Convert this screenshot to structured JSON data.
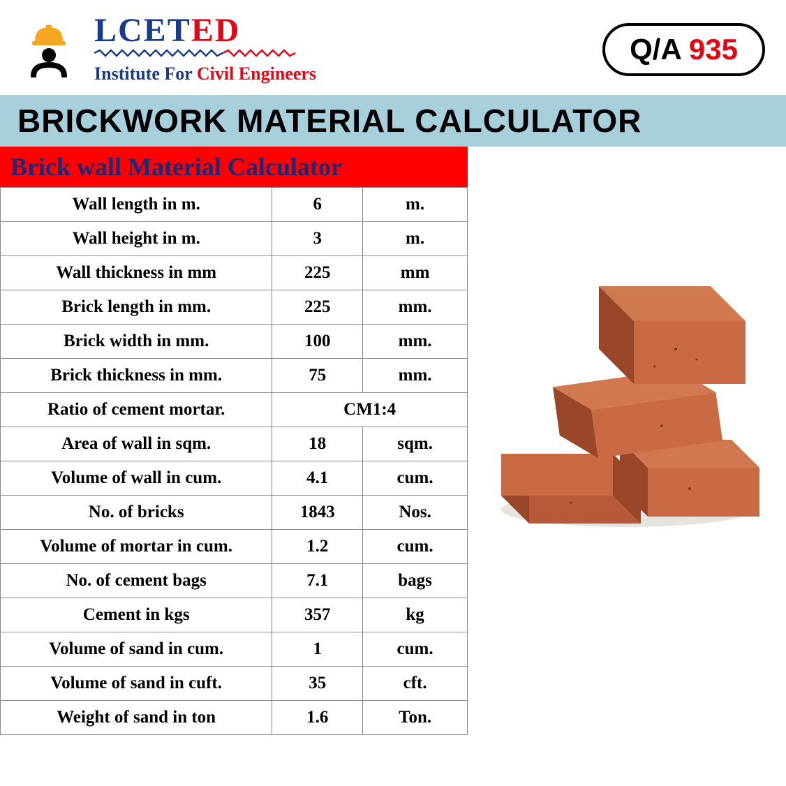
{
  "header": {
    "logo_part1": "LCET",
    "logo_part2": "ED",
    "subtitle_part1": "Institute For ",
    "subtitle_part2": "Civil Engineers",
    "qa_label": "Q/A ",
    "qa_number": "935",
    "underline_colors": {
      "blue": "#1a3a8a",
      "red": "#e30613"
    }
  },
  "main_title": "BRICKWORK MATERIAL CALCULATOR",
  "table": {
    "title": "Brick wall Material Calculator",
    "title_bg": "#ff0000",
    "title_color": "#1a2a7a",
    "border_color": "#8a8a8a",
    "cell_bg": "#ffffff",
    "font_size": 25,
    "rows": [
      {
        "label": "Wall length in m.",
        "value": "6",
        "unit": "m."
      },
      {
        "label": "Wall height in m.",
        "value": "3",
        "unit": "m."
      },
      {
        "label": "Wall thickness in mm",
        "value": "225",
        "unit": "mm"
      },
      {
        "label": "Brick length in mm.",
        "value": "225",
        "unit": "mm."
      },
      {
        "label": "Brick width in mm.",
        "value": "100",
        "unit": "mm."
      },
      {
        "label": "Brick thickness in mm.",
        "value": "75",
        "unit": "mm."
      },
      {
        "label": "Ratio of cement mortar.",
        "merged": "CM1:4"
      },
      {
        "label": "Area of wall in sqm.",
        "value": "18",
        "unit": "sqm."
      },
      {
        "label": "Volume of wall in cum.",
        "value": "4.1",
        "unit": "cum."
      },
      {
        "label": "No. of bricks",
        "value": "1843",
        "unit": "Nos."
      },
      {
        "label": "Volume of mortar in cum.",
        "value": "1.2",
        "unit": "cum."
      },
      {
        "label": "No. of cement bags",
        "value": "7.1",
        "unit": "bags"
      },
      {
        "label": "Cement in kgs",
        "value": "357",
        "unit": "kg"
      },
      {
        "label": "Volume of sand in cum.",
        "value": "1",
        "unit": "cum."
      },
      {
        "label": "Volume of sand in cuft.",
        "value": "35",
        "unit": "cft."
      },
      {
        "label": "Weight of sand in ton",
        "value": "1.6",
        "unit": "Ton."
      }
    ]
  },
  "main_title_bg": "#a8cfdc",
  "image": {
    "description": "stacked red clay bricks",
    "brick_colors": {
      "top": "#b85a3a",
      "front": "#c96a45",
      "side": "#9a4628",
      "shadow": "#7a3820"
    }
  },
  "icon": {
    "helmet_color": "#f5a623",
    "body_color": "#000000"
  }
}
